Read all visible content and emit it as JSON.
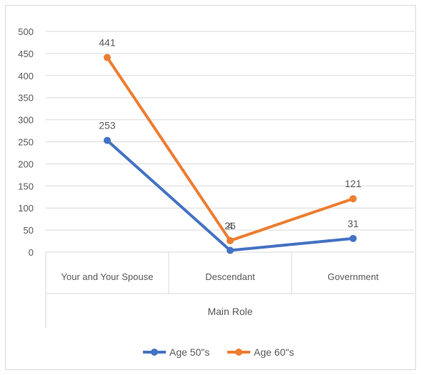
{
  "chart_data": {
    "type": "line",
    "title": "",
    "xlabel": "Main Role",
    "ylabel": "",
    "categories": [
      "Your and Your Spouse",
      "Descendant",
      "Government"
    ],
    "ylim": [
      0,
      500
    ],
    "yticks": [
      0,
      50,
      100,
      150,
      200,
      250,
      300,
      350,
      400,
      450,
      500
    ],
    "grid": true,
    "legend_position": "bottom",
    "series": [
      {
        "name": "Age 50\"s",
        "values": [
          253,
          4,
          31
        ],
        "color": "#4472C4"
      },
      {
        "name": "Age 60\"s",
        "values": [
          441,
          26,
          121
        ],
        "color": "#ED7D31"
      }
    ]
  }
}
